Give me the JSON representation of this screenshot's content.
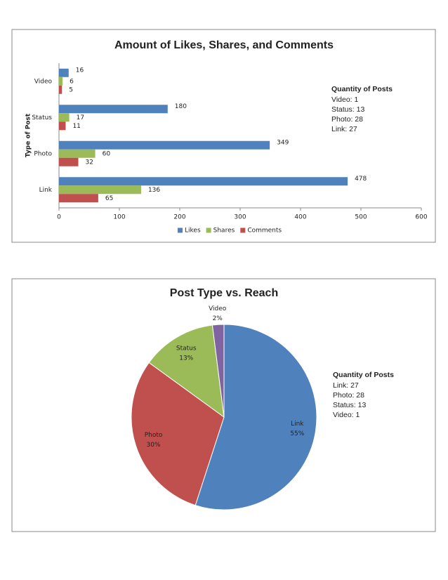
{
  "chart_data": [
    {
      "type": "hbar",
      "title": "Amount of Likes, Shares, and Comments",
      "y_label": "Type of Post",
      "categories": [
        "Video",
        "Status",
        "Photo",
        "Link"
      ],
      "series": [
        {
          "name": "Likes",
          "color": "#4f81bd",
          "values": [
            16,
            180,
            349,
            478
          ]
        },
        {
          "name": "Shares",
          "color": "#9bbb59",
          "values": [
            6,
            17,
            60,
            136
          ]
        },
        {
          "name": "Comments",
          "color": "#c0504d",
          "values": [
            5,
            11,
            32,
            65
          ]
        }
      ],
      "xlim": [
        0,
        600
      ],
      "xticks": [
        0,
        100,
        200,
        300,
        400,
        500,
        600
      ],
      "legend": "bottom",
      "annotation": {
        "title": "Quantity of Posts",
        "lines": [
          "Video: 1",
          "Status: 13",
          "Photo: 28",
          "Link: 27"
        ]
      }
    },
    {
      "type": "pie",
      "title": "Post Type vs. Reach",
      "categories": [
        "Link",
        "Photo",
        "Status",
        "Video"
      ],
      "values": [
        55,
        30,
        13,
        2
      ],
      "value_labels": [
        "55%",
        "30%",
        "13%",
        "2%"
      ],
      "colors": [
        "#4f81bd",
        "#c0504d",
        "#9bbb59",
        "#8064a2"
      ],
      "annotation": {
        "title": "Quantity of Posts",
        "lines": [
          "Link: 27",
          "Photo: 28",
          "Status: 13",
          "Video: 1"
        ]
      }
    }
  ]
}
